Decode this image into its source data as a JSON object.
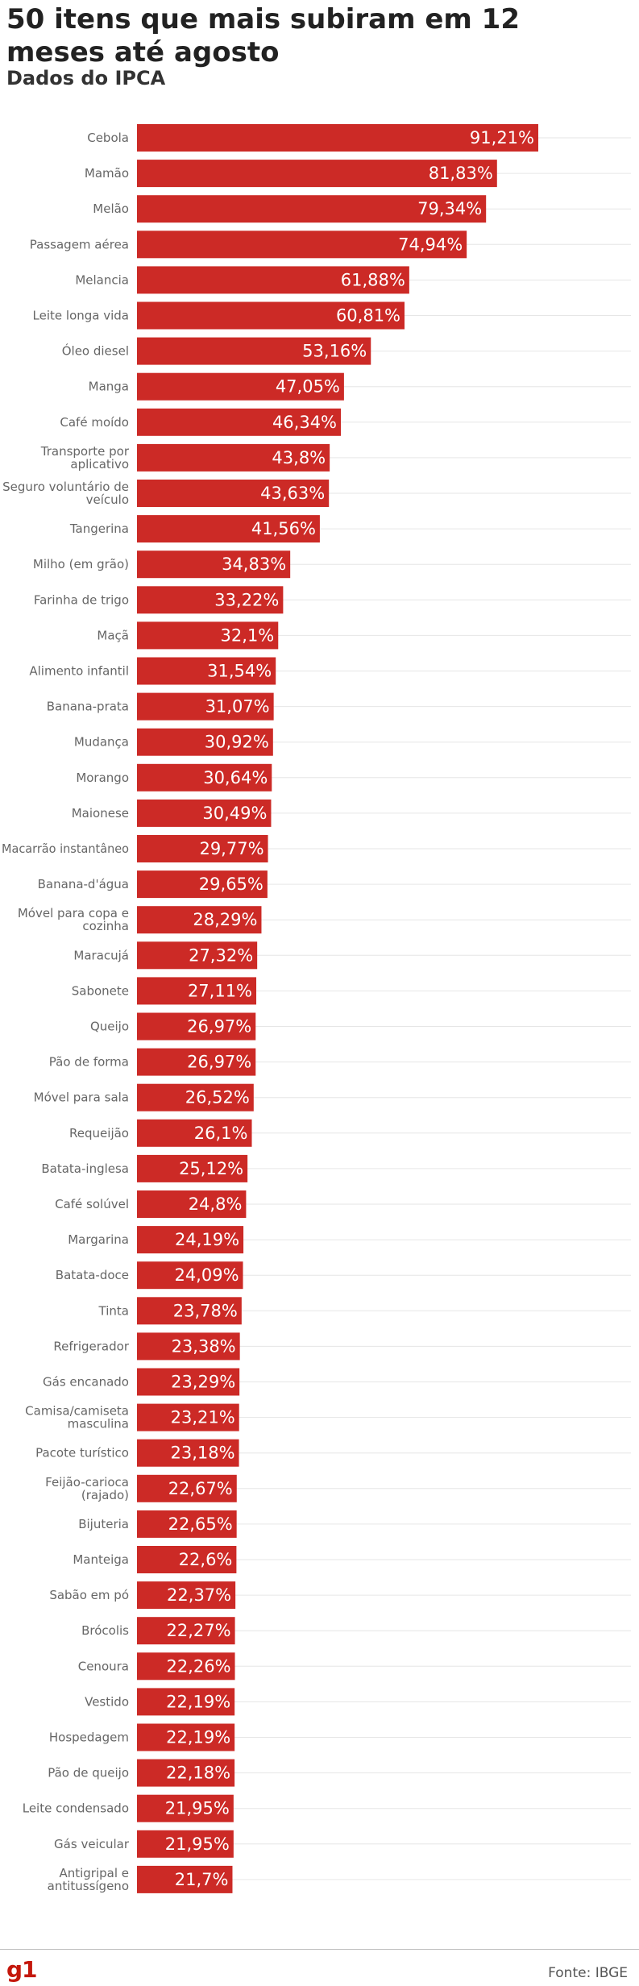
{
  "header": {
    "title": "50 itens que mais subiram em 12 meses até agosto",
    "subtitle": "Dados do IPCA"
  },
  "footer": {
    "logo": "g1",
    "source": "Fonte: IBGE"
  },
  "colors": {
    "bar": "#cc2a26",
    "grid": "#e6e6e6"
  },
  "chart_data": {
    "type": "bar",
    "orientation": "horizontal",
    "title": "50 itens que mais subiram em 12 meses até agosto",
    "subtitle": "Dados do IPCA",
    "xlim": [
      0,
      100
    ],
    "grid": true,
    "categories": [
      "Cebola",
      "Mamão",
      "Melão",
      "Passagem aérea",
      "Melancia",
      "Leite longa vida",
      "Óleo diesel",
      "Manga",
      "Café moído",
      "Transporte por aplicativo",
      "Seguro voluntário de veículo",
      "Tangerina",
      "Milho (em grão)",
      "Farinha de trigo",
      "Maçã",
      "Alimento infantil",
      "Banana-prata",
      "Mudança",
      "Morango",
      "Maionese",
      "Macarrão instantâneo",
      "Banana-d'água",
      "Móvel para copa e cozinha",
      "Maracujá",
      "Sabonete",
      "Queijo",
      "Pão de forma",
      "Móvel para sala",
      "Requeijão",
      "Batata-inglesa",
      "Café solúvel",
      "Margarina",
      "Batata-doce",
      "Tinta",
      "Refrigerador",
      "Gás encanado",
      "Camisa/camiseta masculina",
      "Pacote turístico",
      "Feijão-carioca (rajado)",
      "Bijuteria",
      "Manteiga",
      "Sabão em pó",
      "Brócolis",
      "Cenoura",
      "Vestido",
      "Hospedagem",
      "Pão de queijo",
      "Leite condensado",
      "Gás veicular",
      "Antigripal e antitussígeno"
    ],
    "values": [
      91.21,
      81.83,
      79.34,
      74.94,
      61.88,
      60.81,
      53.16,
      47.05,
      46.34,
      43.8,
      43.63,
      41.56,
      34.83,
      33.22,
      32.1,
      31.54,
      31.07,
      30.92,
      30.64,
      30.49,
      29.77,
      29.65,
      28.29,
      27.32,
      27.11,
      26.97,
      26.97,
      26.52,
      26.1,
      25.12,
      24.8,
      24.19,
      24.09,
      23.78,
      23.38,
      23.29,
      23.21,
      23.18,
      22.67,
      22.65,
      22.6,
      22.37,
      22.27,
      22.26,
      22.19,
      22.19,
      22.18,
      21.95,
      21.95,
      21.7
    ],
    "value_labels": [
      "91,21%",
      "81,83%",
      "79,34%",
      "74,94%",
      "61,88%",
      "60,81%",
      "53,16%",
      "47,05%",
      "46,34%",
      "43,8%",
      "43,63%",
      "41,56%",
      "34,83%",
      "33,22%",
      "32,1%",
      "31,54%",
      "31,07%",
      "30,92%",
      "30,64%",
      "30,49%",
      "29,77%",
      "29,65%",
      "28,29%",
      "27,32%",
      "27,11%",
      "26,97%",
      "26,97%",
      "26,52%",
      "26,1%",
      "25,12%",
      "24,8%",
      "24,19%",
      "24,09%",
      "23,78%",
      "23,38%",
      "23,29%",
      "23,21%",
      "23,18%",
      "22,67%",
      "22,65%",
      "22,6%",
      "22,37%",
      "22,27%",
      "22,26%",
      "22,19%",
      "22,19%",
      "22,18%",
      "21,95%",
      "21,95%",
      "21,7%"
    ]
  }
}
